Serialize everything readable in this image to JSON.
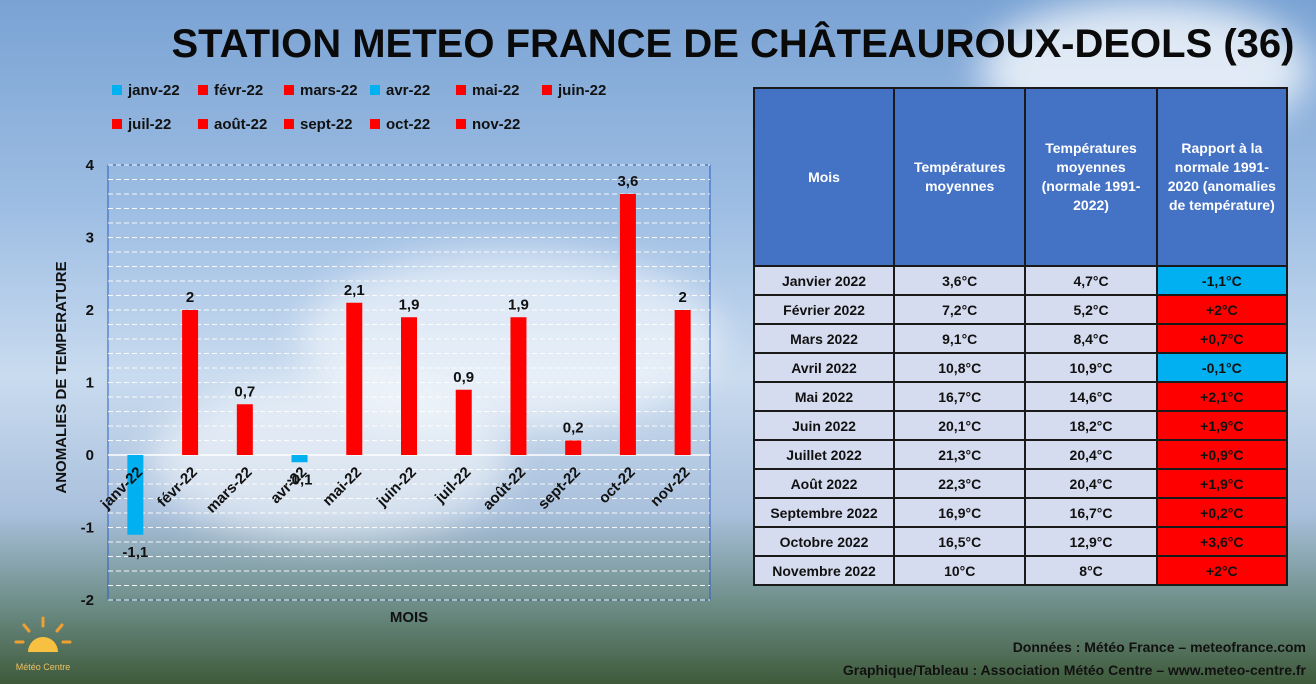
{
  "title": "STATION METEO FRANCE DE CHÂTEAUROUX-DEOLS (36)",
  "colors": {
    "negative": "#00b0f0",
    "positive": "#ff0000",
    "header": "#4472c4",
    "cell": "#d6dcef"
  },
  "legend": [
    {
      "label": "janv-22",
      "color": "#00b0f0"
    },
    {
      "label": "févr-22",
      "color": "#ff0000"
    },
    {
      "label": "mars-22",
      "color": "#ff0000"
    },
    {
      "label": "avr-22",
      "color": "#00b0f0"
    },
    {
      "label": "mai-22",
      "color": "#ff0000"
    },
    {
      "label": "juin-22",
      "color": "#ff0000"
    },
    {
      "label": "juil-22",
      "color": "#ff0000"
    },
    {
      "label": "août-22",
      "color": "#ff0000"
    },
    {
      "label": "sept-22",
      "color": "#ff0000"
    },
    {
      "label": "oct-22",
      "color": "#ff0000"
    },
    {
      "label": "nov-22",
      "color": "#ff0000"
    }
  ],
  "chart_data": {
    "type": "bar",
    "categories": [
      "janv-22",
      "févr-22",
      "mars-22",
      "avr-22",
      "mai-22",
      "juin-22",
      "juil-22",
      "août-22",
      "sept-22",
      "oct-22",
      "nov-22"
    ],
    "values": [
      -1.1,
      2,
      0.7,
      -0.1,
      2.1,
      1.9,
      0.9,
      1.9,
      0.2,
      3.6,
      2
    ],
    "data_labels": [
      "-1,1",
      "2",
      "0,7",
      "-0,1",
      "2,1",
      "1,9",
      "0,9",
      "1,9",
      "0,2",
      "3,6",
      "2"
    ],
    "xlabel": "MOIS",
    "ylabel": "ANOMALIES DE TEMPERATURE",
    "ylim": [
      -2,
      4
    ],
    "yticks": [
      "-2",
      "-1",
      "0",
      "1",
      "2",
      "3",
      "4"
    ],
    "grid": true,
    "legend_position": "top"
  },
  "table": {
    "headers": [
      "Mois",
      "Températures moyennes",
      "Températures moyennes (normale 1991-2022)",
      "Rapport à la normale 1991-2020 (anomalies de température)"
    ],
    "rows": [
      {
        "month": "Janvier 2022",
        "mean": "3,6°C",
        "normal": "4,7°C",
        "anomaly": "-1,1°C",
        "sign": "neg"
      },
      {
        "month": "Février 2022",
        "mean": "7,2°C",
        "normal": "5,2°C",
        "anomaly": "+2°C",
        "sign": "pos"
      },
      {
        "month": "Mars 2022",
        "mean": "9,1°C",
        "normal": "8,4°C",
        "anomaly": "+0,7°C",
        "sign": "pos"
      },
      {
        "month": "Avril 2022",
        "mean": "10,8°C",
        "normal": "10,9°C",
        "anomaly": "-0,1°C",
        "sign": "neg"
      },
      {
        "month": "Mai 2022",
        "mean": "16,7°C",
        "normal": "14,6°C",
        "anomaly": "+2,1°C",
        "sign": "pos"
      },
      {
        "month": "Juin 2022",
        "mean": "20,1°C",
        "normal": "18,2°C",
        "anomaly": "+1,9°C",
        "sign": "pos"
      },
      {
        "month": "Juillet 2022",
        "mean": "21,3°C",
        "normal": "20,4°C",
        "anomaly": "+0,9°C",
        "sign": "pos"
      },
      {
        "month": "Août 2022",
        "mean": "22,3°C",
        "normal": "20,4°C",
        "anomaly": "+1,9°C",
        "sign": "pos"
      },
      {
        "month": "Septembre 2022",
        "mean": "16,9°C",
        "normal": "16,7°C",
        "anomaly": "+0,2°C",
        "sign": "pos"
      },
      {
        "month": "Octobre 2022",
        "mean": "16,5°C",
        "normal": "12,9°C",
        "anomaly": "+3,6°C",
        "sign": "pos"
      },
      {
        "month": "Novembre 2022",
        "mean": "10°C",
        "normal": "8°C",
        "anomaly": "+2°C",
        "sign": "pos"
      }
    ]
  },
  "credits": {
    "line1": "Données : Météo France – meteofrance.com",
    "line2": "Graphique/Tableau : Association Météo Centre – www.meteo-centre.fr"
  },
  "logo": {
    "icon": "sun-logo-icon",
    "text": "Météo Centre"
  }
}
